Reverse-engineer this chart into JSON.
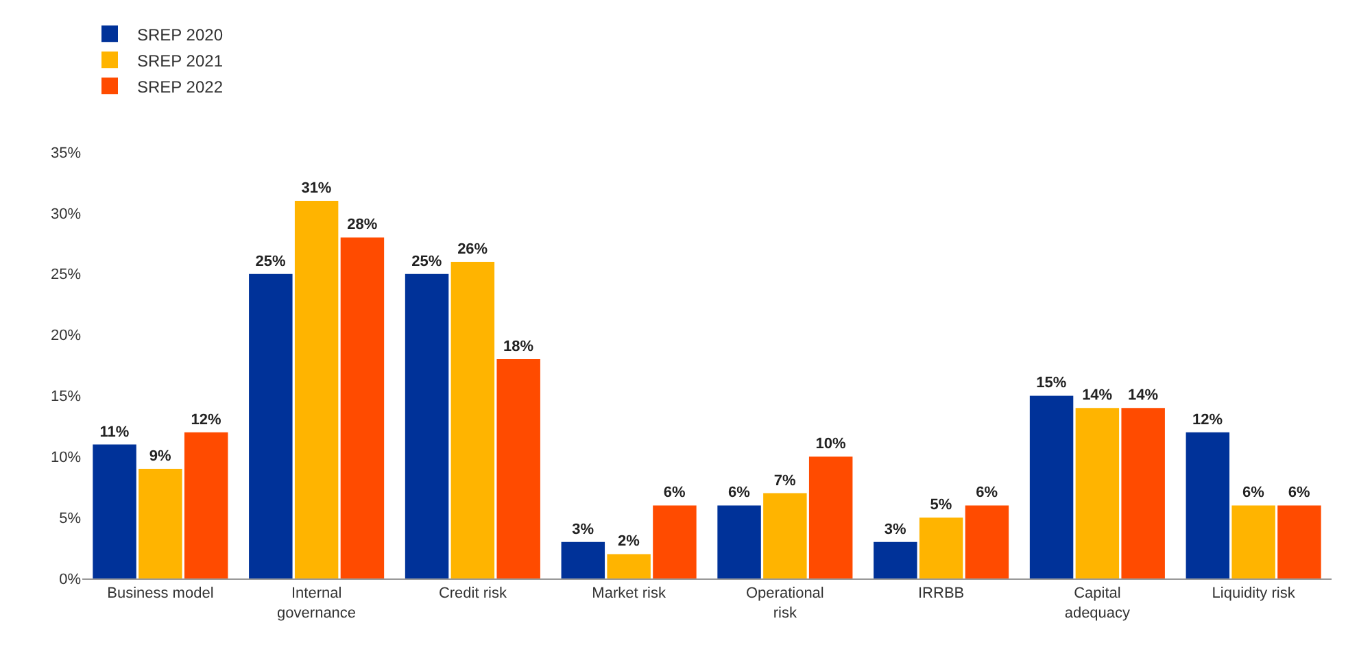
{
  "chart_data": {
    "type": "bar",
    "categories": [
      "Business model",
      "Internal governance",
      "Credit risk",
      "Market risk",
      "Operational risk",
      "IRRBB",
      "Capital adequacy",
      "Liquidity risk"
    ],
    "series": [
      {
        "name": "SREP 2020",
        "color": "#003299",
        "values": [
          11,
          25,
          25,
          3,
          6,
          3,
          15,
          12
        ],
        "value_labels": [
          "11%",
          "25%",
          "25%",
          "3%",
          "6%",
          "3%",
          "15%",
          "12%"
        ]
      },
      {
        "name": "SREP 2021",
        "color": "#ffb400",
        "values": [
          9,
          31,
          26,
          2,
          7,
          5,
          14,
          6
        ],
        "value_labels": [
          "9%",
          "31%",
          "26%",
          "2%",
          "7%",
          "5%",
          "14%",
          "6%"
        ]
      },
      {
        "name": "SREP 2022",
        "color": "#ff4b00",
        "values": [
          12,
          28,
          18,
          6,
          10,
          6,
          14,
          6
        ],
        "value_labels": [
          "12%",
          "28%",
          "18%",
          "6%",
          "10%",
          "6%",
          "14%",
          "6%"
        ]
      }
    ],
    "ylim": [
      0,
      35
    ],
    "yticks": [
      {
        "value": 0,
        "label": "0%"
      },
      {
        "value": 5,
        "label": "5%"
      },
      {
        "value": 10,
        "label": "10%"
      },
      {
        "value": 15,
        "label": "15%"
      },
      {
        "value": 20,
        "label": "20%"
      },
      {
        "value": 25,
        "label": "25%"
      },
      {
        "value": 30,
        "label": "30%"
      },
      {
        "value": 35,
        "label": "35%"
      }
    ],
    "grid": false,
    "legend": "top left"
  }
}
